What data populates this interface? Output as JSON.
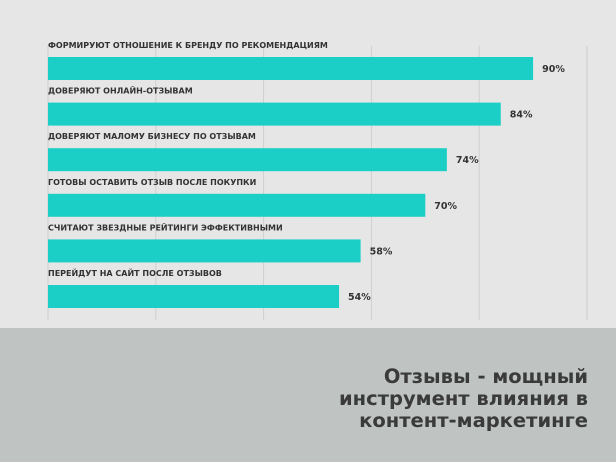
{
  "chart_data": {
    "type": "bar",
    "orientation": "horizontal",
    "categories": [
      "ФОРМИРУЮТ ОТНОШЕНИЕ К БРЕНДУ ПО РЕКОМЕНДАЦИЯМ",
      "ДОВЕРЯЮТ ОНЛАЙН-ОТЗЫВАМ",
      "ДОВЕРЯЮТ МАЛОМУ БИЗНЕСУ ПО ОТЗЫВАМ",
      "ГОТОВЫ ОСТАВИТЬ ОТЗЫВ ПОСЛЕ ПОКУПКИ",
      "СЧИТАЮТ ЗВЕЗДНЫЕ РЕЙТИНГИ ЭФФЕКТИВНЫМИ",
      "ПЕРЕЙДУТ НА САЙТ ПОСЛЕ ОТЗЫВОВ"
    ],
    "values": [
      90,
      84,
      74,
      70,
      58,
      54
    ],
    "data_labels": [
      "90%",
      "84%",
      "74%",
      "70%",
      "58%",
      "54%"
    ],
    "xlim": [
      0,
      100
    ],
    "grid": true,
    "grid_step": 20,
    "bar_color": "#1ccfc6",
    "title": "Отзывы - мощный\nинструмент влияния в\nконтент-маркетинге"
  }
}
